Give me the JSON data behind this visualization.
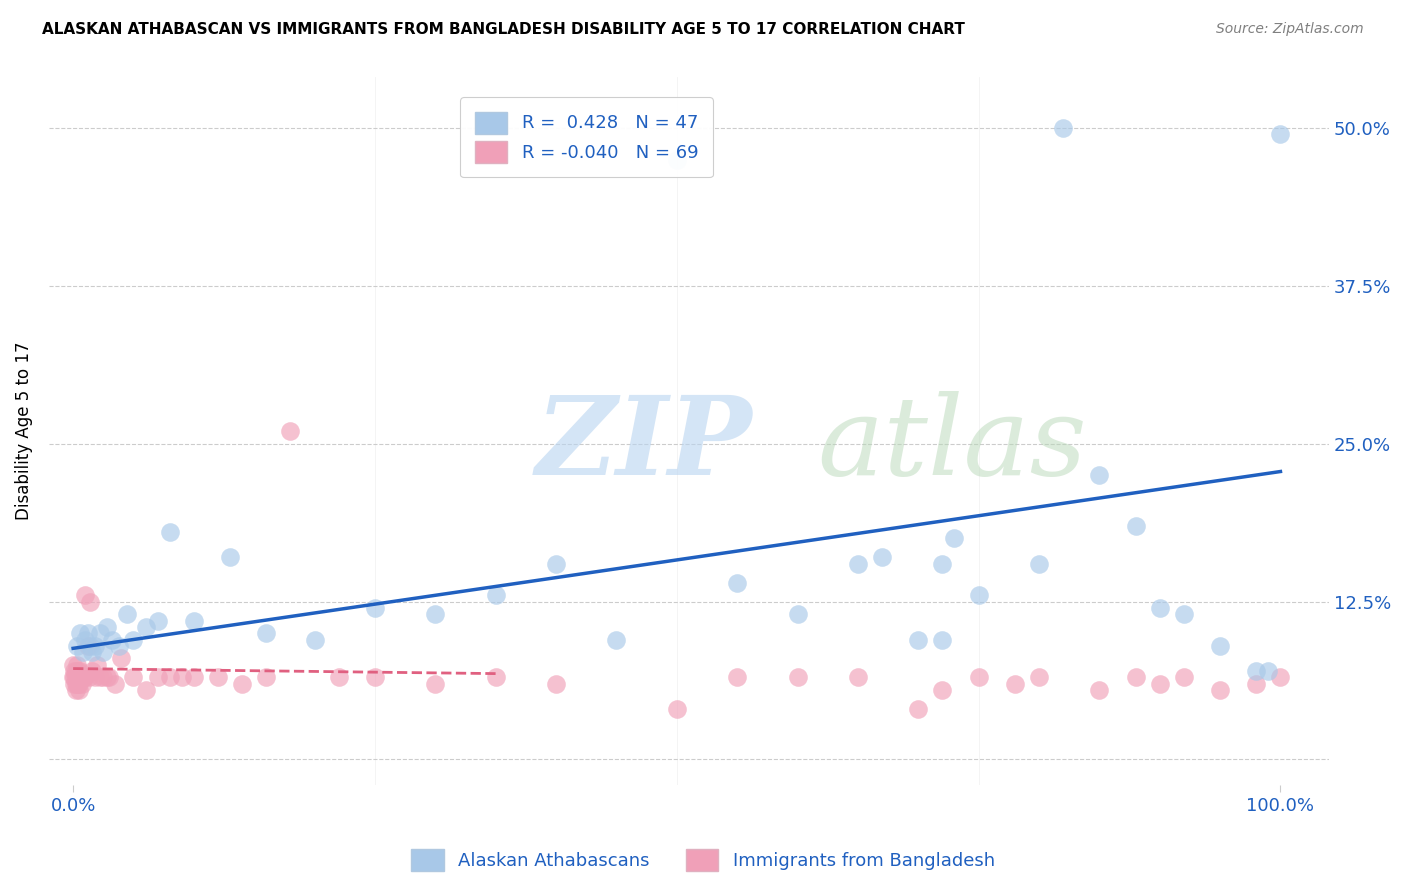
{
  "title": "ALASKAN ATHABASCAN VS IMMIGRANTS FROM BANGLADESH DISABILITY AGE 5 TO 17 CORRELATION CHART",
  "source": "Source: ZipAtlas.com",
  "ylabel_label": "Disability Age 5 to 17",
  "legend_label1": "Alaskan Athabascans",
  "legend_label2": "Immigrants from Bangladesh",
  "R1": 0.428,
  "N1": 47,
  "R2": -0.04,
  "N2": 69,
  "color_blue": "#a8c8e8",
  "color_pink": "#f0a0b8",
  "line_blue": "#2060c0",
  "line_pink": "#e06080",
  "xlim": [
    0.0,
    1.0
  ],
  "ylim": [
    0.0,
    0.5
  ],
  "ytick_vals": [
    0.0,
    0.125,
    0.25,
    0.375,
    0.5
  ],
  "ytick_labels": [
    "",
    "12.5%",
    "25.0%",
    "37.5%",
    "50.0%"
  ],
  "xtick_vals": [
    0.0,
    1.0
  ],
  "xtick_labels": [
    "0.0%",
    "100.0%"
  ],
  "blue_x": [
    0.003,
    0.006,
    0.008,
    0.01,
    0.012,
    0.014,
    0.016,
    0.018,
    0.022,
    0.025,
    0.028,
    0.032,
    0.038,
    0.045,
    0.05,
    0.06,
    0.07,
    0.08,
    0.1,
    0.13,
    0.16,
    0.2,
    0.25,
    0.3,
    0.35,
    0.4,
    0.45,
    0.5,
    0.55,
    0.6,
    0.65,
    0.67,
    0.7,
    0.72,
    0.75,
    0.8,
    0.82,
    0.85,
    0.88,
    0.9,
    0.92,
    0.95,
    0.98,
    0.99,
    0.72,
    0.73,
    1.0
  ],
  "blue_y": [
    0.09,
    0.1,
    0.085,
    0.095,
    0.1,
    0.09,
    0.085,
    0.09,
    0.1,
    0.085,
    0.105,
    0.095,
    0.09,
    0.115,
    0.095,
    0.105,
    0.11,
    0.18,
    0.11,
    0.16,
    0.1,
    0.095,
    0.12,
    0.115,
    0.13,
    0.155,
    0.095,
    0.475,
    0.14,
    0.115,
    0.155,
    0.16,
    0.095,
    0.095,
    0.13,
    0.155,
    0.5,
    0.225,
    0.185,
    0.12,
    0.115,
    0.09,
    0.07,
    0.07,
    0.155,
    0.175,
    0.495
  ],
  "pink_x": [
    0.0,
    0.0,
    0.001,
    0.001,
    0.001,
    0.002,
    0.002,
    0.002,
    0.002,
    0.003,
    0.003,
    0.003,
    0.003,
    0.004,
    0.004,
    0.004,
    0.005,
    0.005,
    0.005,
    0.006,
    0.007,
    0.007,
    0.008,
    0.009,
    0.01,
    0.01,
    0.012,
    0.013,
    0.014,
    0.016,
    0.018,
    0.02,
    0.022,
    0.025,
    0.028,
    0.03,
    0.035,
    0.04,
    0.05,
    0.06,
    0.07,
    0.08,
    0.09,
    0.1,
    0.12,
    0.14,
    0.16,
    0.18,
    0.22,
    0.25,
    0.3,
    0.35,
    0.4,
    0.5,
    0.55,
    0.6,
    0.65,
    0.7,
    0.72,
    0.75,
    0.78,
    0.8,
    0.85,
    0.88,
    0.9,
    0.92,
    0.95,
    0.98,
    1.0
  ],
  "pink_y": [
    0.065,
    0.075,
    0.06,
    0.07,
    0.065,
    0.065,
    0.06,
    0.07,
    0.055,
    0.065,
    0.06,
    0.065,
    0.075,
    0.065,
    0.07,
    0.06,
    0.065,
    0.055,
    0.06,
    0.07,
    0.065,
    0.06,
    0.065,
    0.065,
    0.065,
    0.13,
    0.09,
    0.065,
    0.125,
    0.07,
    0.065,
    0.075,
    0.065,
    0.065,
    0.065,
    0.065,
    0.06,
    0.08,
    0.065,
    0.055,
    0.065,
    0.065,
    0.065,
    0.065,
    0.065,
    0.06,
    0.065,
    0.26,
    0.065,
    0.065,
    0.06,
    0.065,
    0.06,
    0.04,
    0.065,
    0.065,
    0.065,
    0.04,
    0.055,
    0.065,
    0.06,
    0.065,
    0.055,
    0.065,
    0.06,
    0.065,
    0.055,
    0.06,
    0.065
  ],
  "blue_line_x0": 0.0,
  "blue_line_y0": 0.088,
  "blue_line_x1": 1.0,
  "blue_line_y1": 0.228,
  "pink_line_x0": 0.0,
  "pink_line_y0": 0.072,
  "pink_line_x1": 0.35,
  "pink_line_y1": 0.068
}
